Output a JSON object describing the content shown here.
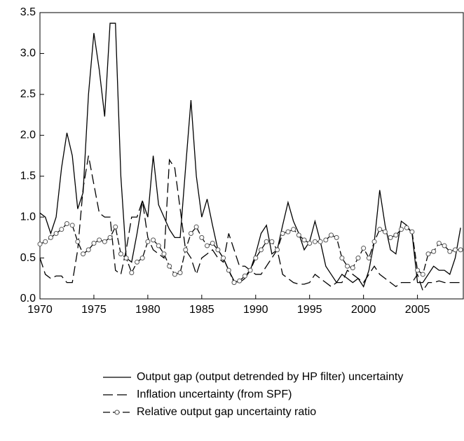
{
  "chart_data": {
    "type": "line",
    "x": [
      1970,
      1970.5,
      1971,
      1971.5,
      1972,
      1972.5,
      1973,
      1973.5,
      1974,
      1974.5,
      1975,
      1975.5,
      1976,
      1976.5,
      1977,
      1977.5,
      1978,
      1978.5,
      1979,
      1979.5,
      1980,
      1980.5,
      1981,
      1981.5,
      1982,
      1982.5,
      1983,
      1983.5,
      1984,
      1984.5,
      1985,
      1985.5,
      1986,
      1986.5,
      1987,
      1987.5,
      1988,
      1988.5,
      1989,
      1989.5,
      1990,
      1990.5,
      1991,
      1991.5,
      1992,
      1992.5,
      1993,
      1993.5,
      1994,
      1994.5,
      1995,
      1995.5,
      1996,
      1996.5,
      1997,
      1997.5,
      1998,
      1998.5,
      1999,
      1999.5,
      2000,
      2000.5,
      2001,
      2001.5,
      2002,
      2002.5,
      2003,
      2003.5,
      2004,
      2004.5,
      2005,
      2005.5,
      2006,
      2006.5,
      2007,
      2007.5,
      2008,
      2008.5,
      2009
    ],
    "series": [
      {
        "name": "Output gap (output detrended by HP filter) uncertainty",
        "color": "#000000",
        "style": "solid",
        "values": [
          1.05,
          1.0,
          0.8,
          1.0,
          1.6,
          2.03,
          1.75,
          1.1,
          1.3,
          2.5,
          3.25,
          2.8,
          2.23,
          3.37,
          3.37,
          1.5,
          0.5,
          0.45,
          0.8,
          1.2,
          1.0,
          1.75,
          1.15,
          1.0,
          0.85,
          0.75,
          0.75,
          1.6,
          2.43,
          1.5,
          1.0,
          1.22,
          0.9,
          0.6,
          0.5,
          0.35,
          0.22,
          0.2,
          0.25,
          0.35,
          0.55,
          0.8,
          0.9,
          0.55,
          0.6,
          0.9,
          1.18,
          0.95,
          0.8,
          0.6,
          0.7,
          0.95,
          0.7,
          0.4,
          0.3,
          0.2,
          0.3,
          0.25,
          0.2,
          0.25,
          0.15,
          0.35,
          0.7,
          1.33,
          0.9,
          0.6,
          0.55,
          0.95,
          0.9,
          0.8,
          0.2,
          0.2,
          0.3,
          0.4,
          0.35,
          0.35,
          0.3,
          0.5,
          0.87
        ]
      },
      {
        "name": "Inflation uncertainty (from SPF)",
        "color": "#000000",
        "style": "dashed",
        "values": [
          0.5,
          0.3,
          0.25,
          0.28,
          0.28,
          0.2,
          0.2,
          0.6,
          1.35,
          1.75,
          1.4,
          1.05,
          1.0,
          1.0,
          0.35,
          0.3,
          0.6,
          1.0,
          1.0,
          1.2,
          0.75,
          0.6,
          0.55,
          0.5,
          1.7,
          1.6,
          1.1,
          0.6,
          0.5,
          0.3,
          0.5,
          0.55,
          0.6,
          0.5,
          0.45,
          0.8,
          0.6,
          0.4,
          0.4,
          0.35,
          0.3,
          0.3,
          0.4,
          0.5,
          0.6,
          0.3,
          0.25,
          0.2,
          0.18,
          0.18,
          0.2,
          0.3,
          0.25,
          0.2,
          0.15,
          0.2,
          0.2,
          0.35,
          0.3,
          0.25,
          0.2,
          0.3,
          0.4,
          0.3,
          0.25,
          0.2,
          0.15,
          0.2,
          0.2,
          0.2,
          0.3,
          0.1,
          0.2,
          0.2,
          0.22,
          0.2,
          0.2,
          0.2,
          0.2
        ]
      },
      {
        "name": "Relative output gap uncertainty ratio",
        "color": "#000000",
        "style": "marker",
        "values": [
          0.67,
          0.7,
          0.75,
          0.8,
          0.85,
          0.92,
          0.9,
          0.7,
          0.55,
          0.6,
          0.68,
          0.72,
          0.7,
          0.75,
          0.88,
          0.55,
          0.5,
          0.32,
          0.45,
          0.5,
          0.7,
          0.72,
          0.65,
          0.55,
          0.4,
          0.3,
          0.32,
          0.6,
          0.8,
          0.88,
          0.75,
          0.65,
          0.68,
          0.6,
          0.5,
          0.35,
          0.2,
          0.22,
          0.28,
          0.35,
          0.5,
          0.6,
          0.7,
          0.7,
          0.6,
          0.8,
          0.82,
          0.85,
          0.78,
          0.72,
          0.68,
          0.7,
          0.7,
          0.72,
          0.78,
          0.75,
          0.5,
          0.4,
          0.38,
          0.5,
          0.62,
          0.5,
          0.7,
          0.85,
          0.82,
          0.75,
          0.78,
          0.85,
          0.87,
          0.82,
          0.35,
          0.3,
          0.55,
          0.58,
          0.68,
          0.65,
          0.58,
          0.6,
          0.6
        ]
      }
    ],
    "xlim": [
      1970,
      2009.25
    ],
    "xticks": [
      1970,
      1975,
      1980,
      1985,
      1990,
      1995,
      2000,
      2005
    ],
    "ylim": [
      0,
      3.5
    ],
    "yticks": [
      {
        "value": 0,
        "label": "0.0"
      },
      0.5,
      {
        "value": 1,
        "label": "1.0"
      },
      1.5,
      {
        "value": 2,
        "label": "2.0"
      },
      2.5,
      {
        "value": 3,
        "label": "3.0"
      },
      3.5
    ],
    "grid": false,
    "legend": "bottom"
  }
}
